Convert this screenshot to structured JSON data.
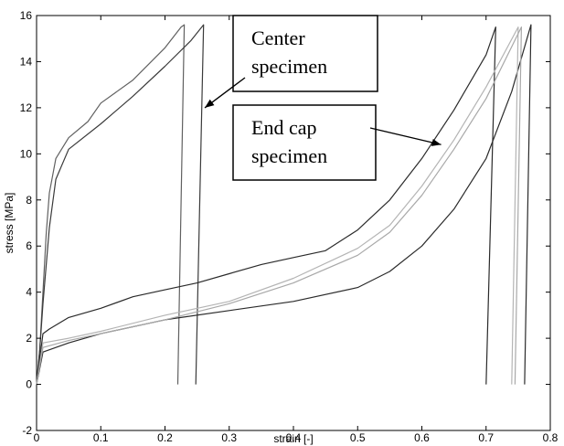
{
  "chart_data": {
    "type": "line",
    "title": "",
    "xlabel": "strain [-]",
    "ylabel": "stress [MPa]",
    "xlim": [
      0,
      0.8
    ],
    "ylim": [
      -2,
      16
    ],
    "x_ticks": [
      "0",
      "0.1",
      "0.2",
      "0.3",
      "0.4",
      "0.5",
      "0.6",
      "0.7",
      "0.8"
    ],
    "y_ticks": [
      "-2",
      "0",
      "2",
      "4",
      "6",
      "8",
      "10",
      "12",
      "14",
      "16"
    ],
    "grid": false,
    "legend": "none",
    "annotations": [
      {
        "lines": [
          "Center",
          "specimen"
        ],
        "arrow_to": [
          0.262,
          12.0
        ]
      },
      {
        "lines": [
          "End cap",
          "specimen"
        ],
        "arrow_to": [
          0.63,
          10.4
        ]
      }
    ],
    "series": [
      {
        "color": "#606060",
        "points": [
          [
            0.0,
            0.0
          ],
          [
            0.005,
            1.5
          ],
          [
            0.01,
            4.0
          ],
          [
            0.015,
            6.5
          ],
          [
            0.02,
            8.3
          ],
          [
            0.03,
            9.8
          ],
          [
            0.05,
            10.7
          ],
          [
            0.08,
            11.4
          ],
          [
            0.1,
            12.2
          ],
          [
            0.15,
            13.2
          ],
          [
            0.2,
            14.6
          ],
          [
            0.225,
            15.5
          ],
          [
            0.23,
            15.6
          ],
          [
            0.22,
            0.0
          ]
        ]
      },
      {
        "color": "#3a3a3a",
        "points": [
          [
            0.0,
            0.0
          ],
          [
            0.005,
            1.5
          ],
          [
            0.01,
            3.5
          ],
          [
            0.02,
            6.8
          ],
          [
            0.03,
            8.9
          ],
          [
            0.05,
            10.2
          ],
          [
            0.1,
            11.3
          ],
          [
            0.15,
            12.5
          ],
          [
            0.2,
            13.8
          ],
          [
            0.24,
            14.9
          ],
          [
            0.26,
            15.6
          ],
          [
            0.248,
            0.0
          ]
        ]
      },
      {
        "color": "#2a2a2a",
        "points": [
          [
            0.0,
            0.0
          ],
          [
            0.01,
            2.2
          ],
          [
            0.02,
            2.4
          ],
          [
            0.05,
            2.9
          ],
          [
            0.1,
            3.3
          ],
          [
            0.15,
            3.8
          ],
          [
            0.2,
            4.1
          ],
          [
            0.25,
            4.4
          ],
          [
            0.3,
            4.8
          ],
          [
            0.35,
            5.2
          ],
          [
            0.4,
            5.5
          ],
          [
            0.45,
            5.8
          ],
          [
            0.5,
            6.7
          ],
          [
            0.55,
            8.0
          ],
          [
            0.6,
            9.8
          ],
          [
            0.65,
            11.9
          ],
          [
            0.7,
            14.3
          ],
          [
            0.715,
            15.5
          ],
          [
            0.7,
            0.0
          ]
        ]
      },
      {
        "color": "#2a2a2a",
        "points": [
          [
            0.0,
            0.0
          ],
          [
            0.01,
            1.4
          ],
          [
            0.03,
            1.6
          ],
          [
            0.05,
            1.8
          ],
          [
            0.1,
            2.2
          ],
          [
            0.2,
            2.8
          ],
          [
            0.3,
            3.2
          ],
          [
            0.4,
            3.6
          ],
          [
            0.5,
            4.2
          ],
          [
            0.55,
            4.9
          ],
          [
            0.6,
            6.0
          ],
          [
            0.65,
            7.6
          ],
          [
            0.7,
            9.8
          ],
          [
            0.74,
            12.7
          ],
          [
            0.77,
            15.6
          ],
          [
            0.76,
            0.0
          ]
        ]
      },
      {
        "color": "#b4b4b4",
        "points": [
          [
            0.0,
            0.0
          ],
          [
            0.01,
            1.8
          ],
          [
            0.05,
            2.0
          ],
          [
            0.1,
            2.3
          ],
          [
            0.2,
            3.0
          ],
          [
            0.3,
            3.6
          ],
          [
            0.4,
            4.6
          ],
          [
            0.5,
            5.9
          ],
          [
            0.55,
            6.9
          ],
          [
            0.6,
            8.6
          ],
          [
            0.65,
            10.6
          ],
          [
            0.7,
            12.9
          ],
          [
            0.75,
            15.5
          ],
          [
            0.74,
            0.0
          ]
        ]
      },
      {
        "color": "#a8a8a8",
        "points": [
          [
            0.0,
            0.0
          ],
          [
            0.01,
            1.6
          ],
          [
            0.05,
            1.9
          ],
          [
            0.1,
            2.2
          ],
          [
            0.2,
            2.8
          ],
          [
            0.3,
            3.5
          ],
          [
            0.4,
            4.4
          ],
          [
            0.5,
            5.6
          ],
          [
            0.55,
            6.6
          ],
          [
            0.6,
            8.2
          ],
          [
            0.65,
            10.2
          ],
          [
            0.7,
            12.4
          ],
          [
            0.755,
            15.5
          ],
          [
            0.745,
            0.0
          ]
        ]
      }
    ]
  }
}
